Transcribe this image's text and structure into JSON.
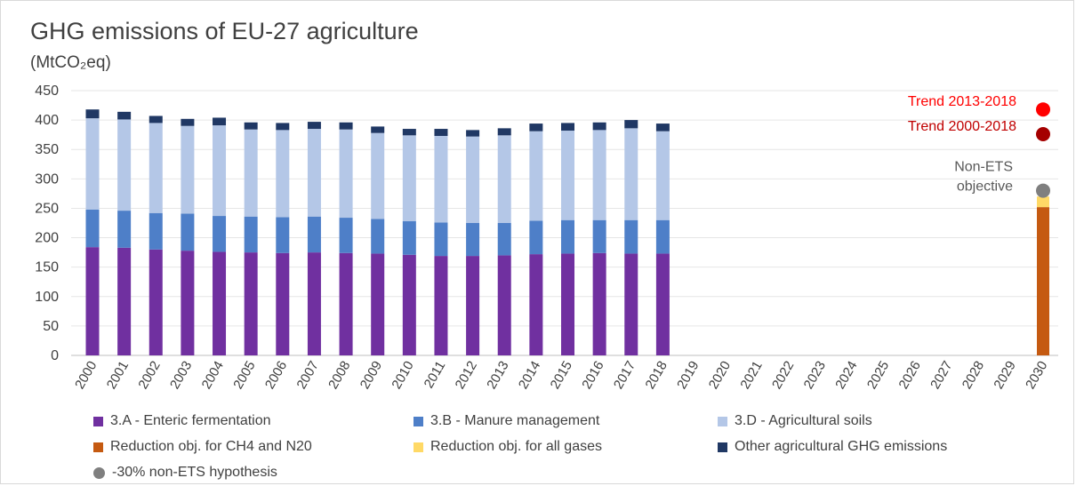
{
  "chart_data": {
    "type": "bar",
    "title": "GHG emissions of EU-27 agriculture",
    "unit": "(MtCO₂eq)",
    "ylim": [
      0,
      450
    ],
    "yticks": [
      0,
      50,
      100,
      150,
      200,
      250,
      300,
      350,
      400,
      450
    ],
    "grid": true,
    "categories": [
      "2000",
      "2001",
      "2002",
      "2003",
      "2004",
      "2005",
      "2006",
      "2007",
      "2008",
      "2009",
      "2010",
      "2011",
      "2012",
      "2013",
      "2014",
      "2015",
      "2016",
      "2017",
      "2018",
      "2019",
      "2020",
      "2021",
      "2022",
      "2023",
      "2024",
      "2025",
      "2026",
      "2027",
      "2028",
      "2029",
      "2030"
    ],
    "stacked": true,
    "series": [
      {
        "name": "3.A - Enteric fermentation",
        "color": "#7030a0",
        "values": [
          184,
          183,
          180,
          178,
          176,
          175,
          174,
          175,
          174,
          173,
          171,
          169,
          169,
          170,
          172,
          173,
          174,
          173,
          173,
          null,
          null,
          null,
          null,
          null,
          null,
          null,
          null,
          null,
          null,
          null,
          null
        ]
      },
      {
        "name": "3.B - Manure management",
        "color": "#4e7fc8",
        "values": [
          64,
          63,
          62,
          63,
          61,
          61,
          61,
          61,
          60,
          59,
          57,
          57,
          56,
          55,
          57,
          57,
          56,
          57,
          57,
          null,
          null,
          null,
          null,
          null,
          null,
          null,
          null,
          null,
          null,
          null,
          null
        ]
      },
      {
        "name": "3.D - Agricultural soils",
        "color": "#b4c7e7",
        "values": [
          155,
          155,
          153,
          149,
          154,
          148,
          148,
          149,
          150,
          146,
          146,
          147,
          147,
          149,
          152,
          152,
          153,
          156,
          151,
          null,
          null,
          null,
          null,
          null,
          null,
          null,
          null,
          null,
          null,
          null,
          null
        ]
      },
      {
        "name": "Other agricultural GHG emissions",
        "color": "#203864",
        "values": [
          15,
          13,
          12,
          12,
          13,
          12,
          12,
          12,
          12,
          11,
          11,
          12,
          11,
          12,
          13,
          13,
          13,
          14,
          13,
          null,
          null,
          null,
          null,
          null,
          null,
          null,
          null,
          null,
          null,
          null,
          null
        ]
      },
      {
        "name": "Reduction obj. for CH4 and N20",
        "color": "#c55a11",
        "values": [
          null,
          null,
          null,
          null,
          null,
          null,
          null,
          null,
          null,
          null,
          null,
          null,
          null,
          null,
          null,
          null,
          null,
          null,
          null,
          null,
          null,
          null,
          null,
          null,
          null,
          null,
          null,
          null,
          null,
          null,
          252
        ]
      },
      {
        "name": "Reduction obj. for all gases",
        "color": "#ffd966",
        "values": [
          null,
          null,
          null,
          null,
          null,
          null,
          null,
          null,
          null,
          null,
          null,
          null,
          null,
          null,
          null,
          null,
          null,
          null,
          null,
          null,
          null,
          null,
          null,
          null,
          null,
          null,
          null,
          null,
          null,
          null,
          18
        ]
      }
    ],
    "points": [
      {
        "name": "Trend 2013-2018",
        "label": "Trend 2013-2018",
        "x": "2030",
        "y": 418,
        "color": "#ff0000",
        "label_color": "#ff0000"
      },
      {
        "name": "Trend 2000-2018",
        "label": "Trend 2000-2018",
        "x": "2030",
        "y": 376,
        "color": "#a50000",
        "label_color": "#c00000"
      },
      {
        "name": "-30% non-ETS hypothesis",
        "label_lines": [
          "Non-ETS",
          "objective"
        ],
        "x": "2030",
        "y": 280,
        "color": "#7f7f7f",
        "label_color": "#595959"
      }
    ],
    "legend": {
      "position": "bottom",
      "items": [
        {
          "label": "3.A - Enteric fermentation",
          "color": "#7030a0",
          "shape": "square"
        },
        {
          "label": "3.B - Manure management",
          "color": "#4e7fc8",
          "shape": "square"
        },
        {
          "label": "3.D - Agricultural soils",
          "color": "#b4c7e7",
          "shape": "square"
        },
        {
          "label": "Reduction obj. for CH4 and N20",
          "color": "#c55a11",
          "shape": "square"
        },
        {
          "label": "Reduction obj. for all gases",
          "color": "#ffd966",
          "shape": "square"
        },
        {
          "label": "Other agricultural GHG emissions",
          "color": "#203864",
          "shape": "square"
        },
        {
          "label": "-30% non-ETS hypothesis",
          "color": "#7f7f7f",
          "shape": "circle"
        }
      ]
    }
  }
}
